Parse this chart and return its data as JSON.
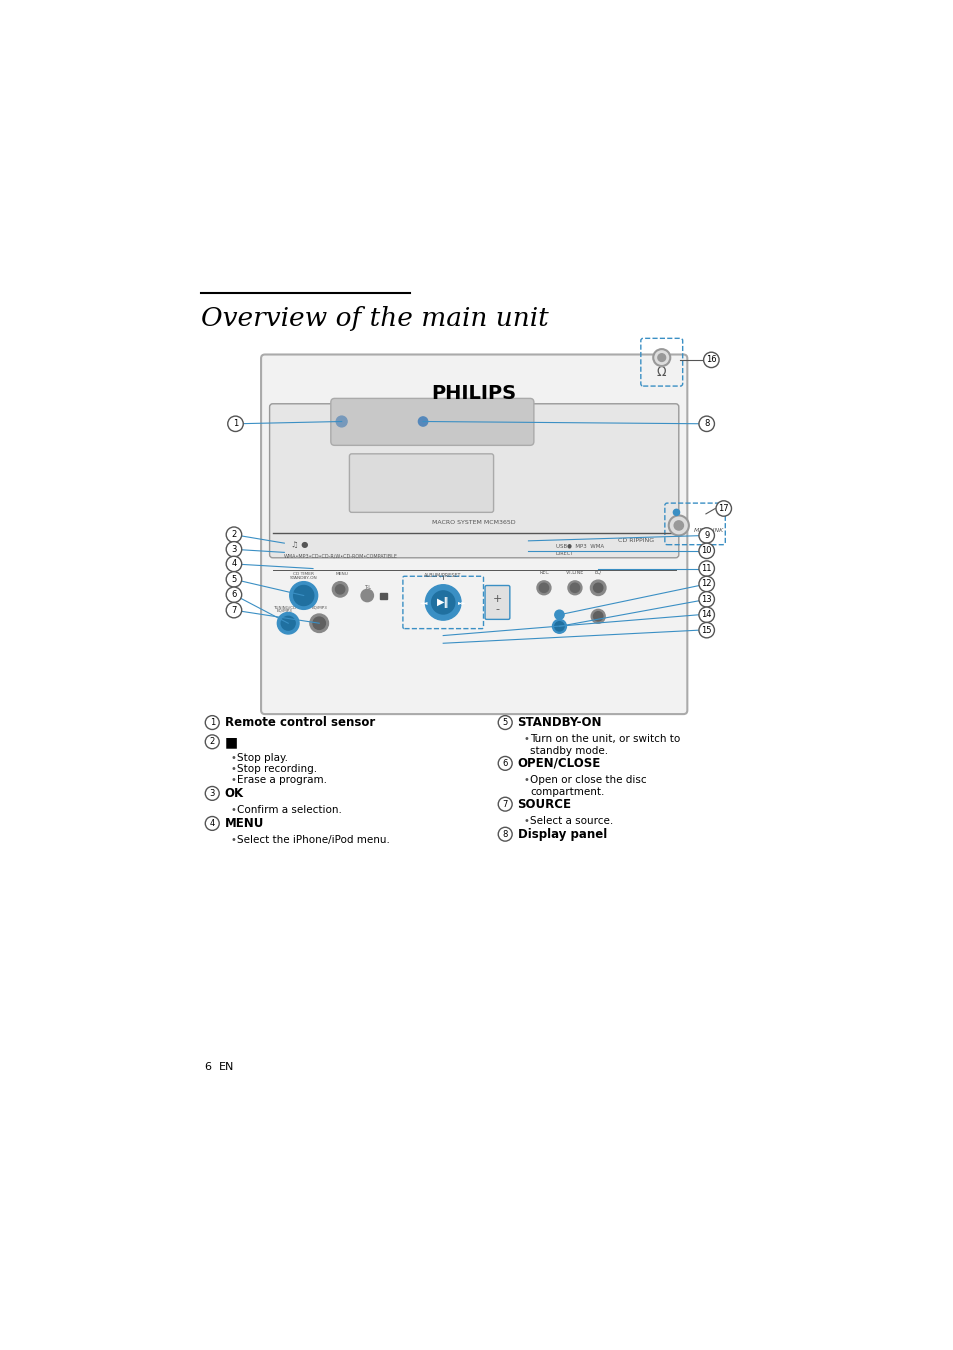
{
  "title": "Overview of the main unit",
  "bg_color": "#ffffff",
  "text_color": "#000000",
  "blue_color": "#3a8fc4",
  "line_color": "#555555",
  "label_descriptions": [
    {
      "num": "1",
      "title": "Remote control sensor",
      "bullets": [],
      "bold": true
    },
    {
      "num": "2",
      "title": "■",
      "bullets": [
        "Stop play.",
        "Stop recording.",
        "Erase a program."
      ],
      "bold": false
    },
    {
      "num": "3",
      "title": "OK",
      "bullets": [
        "Confirm a selection."
      ],
      "bold": true
    },
    {
      "num": "4",
      "title": "MENU",
      "bullets": [
        "Select the iPhone/iPod menu."
      ],
      "bold": true
    },
    {
      "num": "5",
      "title": "STANDBY-ON",
      "bullets": [
        "Turn on the unit, or switch to\nstandby mode."
      ],
      "bold": true
    },
    {
      "num": "6",
      "title": "OPEN/CLOSE",
      "bullets": [
        "Open or close the disc\ncompartment."
      ],
      "bold": true
    },
    {
      "num": "7",
      "title": "SOURCE",
      "bullets": [
        "Select a source."
      ],
      "bold": true
    },
    {
      "num": "8",
      "title": "Display panel",
      "bullets": [],
      "bold": true
    }
  ],
  "page_num": "6",
  "page_lang": "EN"
}
